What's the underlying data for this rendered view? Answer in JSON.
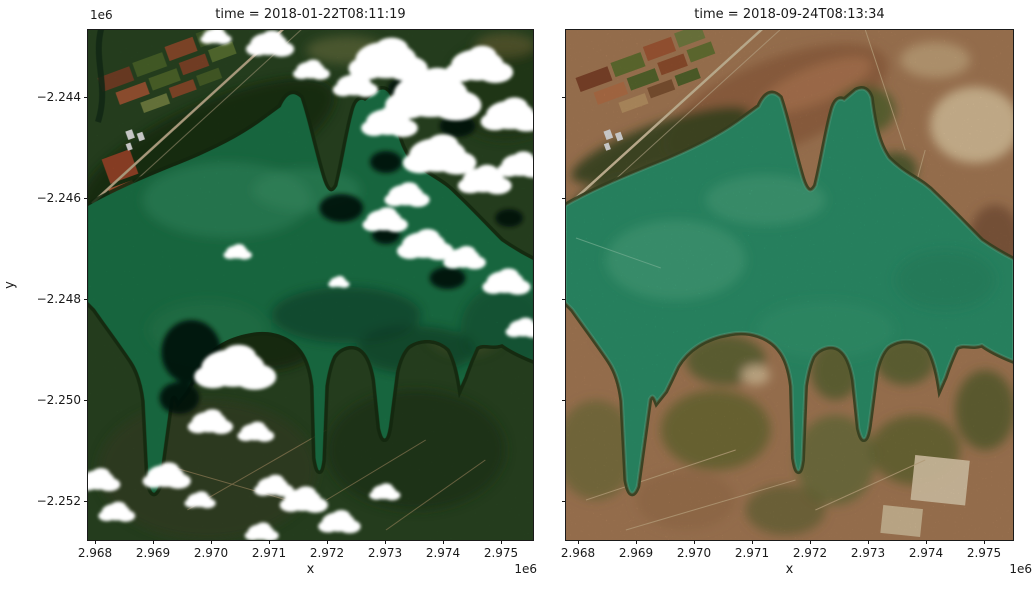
{
  "figure": {
    "background_color": "#ffffff",
    "text_color": "#1a1a1a",
    "panels": [
      {
        "id": "left",
        "title": "time = 2018-01-22T08:11:19",
        "xlabel": "x",
        "ylabel": "y",
        "x_offset_label": "1e6",
        "y_offset_label": "1e6",
        "xtick_labels": [
          "2.968",
          "2.969",
          "2.970",
          "2.971",
          "2.972",
          "2.973",
          "2.974",
          "2.975"
        ],
        "ytick_labels": [
          "−2.244",
          "−2.246",
          "−2.248",
          "−2.250",
          "−2.252"
        ]
      },
      {
        "id": "right",
        "title": "time = 2018-09-24T08:13:34",
        "xlabel": "x",
        "x_offset_label": "1e6",
        "xtick_labels": [
          "2.968",
          "2.969",
          "2.970",
          "2.971",
          "2.972",
          "2.973",
          "2.974",
          "2.975"
        ],
        "ytick_labels": []
      }
    ],
    "colors": {
      "background": "#ffffff",
      "left_land": "#2c4a24",
      "left_forest_dark": "#1a2f14",
      "left_water": "#1d7c4c",
      "left_water_light": "#3b9a6b",
      "left_water_dark": "#0f4a30",
      "left_shore_vegetation": "#173012",
      "cloud_white": "#ffffff",
      "cloud_shadow": "#05120a",
      "right_land": "#b5855d",
      "right_land_dark": "#8f6644",
      "right_scrub_green": "#5c6c33",
      "right_sand": "#e9cda3",
      "right_water": "#2f9c72",
      "right_water_light": "#54b68b",
      "right_water_margin": "#6cc29e",
      "right_shore_vegetation": "#3f4d26",
      "field_red": "#9c4f30",
      "field_green": "#55702f",
      "track_tan": "#c2a274"
    }
  },
  "chart_data": [
    {
      "type": "heatmap",
      "subtype": "rgb_satellite_image",
      "title": "time = 2018-01-22T08:11:19",
      "xlabel": "x",
      "ylabel": "y",
      "x_offset_factor": "1e6",
      "y_offset_factor": "1e6",
      "xticks": [
        2.968,
        2.969,
        2.97,
        2.971,
        2.972,
        2.973,
        2.974,
        2.975
      ],
      "yticks": [
        -2.244,
        -2.246,
        -2.248,
        -2.25,
        -2.252
      ],
      "x_range_approx": [
        2967600,
        2975800
      ],
      "y_range_approx": [
        -2252800,
        -2242700
      ],
      "grid": false,
      "legend": false,
      "description": "True-colour satellite image of a reservoir in the wet season: deep green water, dark green vegetated shores, red and green farm fields with a road in the north-west corner, bright white cumulus clouds with black shadows over the north-east peninsula, the lake centre and the southern shore."
    },
    {
      "type": "heatmap",
      "subtype": "rgb_satellite_image",
      "title": "time = 2018-09-24T08:13:34",
      "xlabel": "x",
      "ylabel": "y",
      "x_offset_factor": "1e6",
      "xticks": [
        2.968,
        2.969,
        2.97,
        2.971,
        2.972,
        2.973,
        2.974,
        2.975
      ],
      "yticks": [
        -2.244,
        -2.246,
        -2.248,
        -2.25,
        -2.252
      ],
      "x_range_approx": [
        2967600,
        2975800
      ],
      "y_range_approx": [
        -2252800,
        -2242700
      ],
      "grid": false,
      "legend": false,
      "description": "Same reservoir in the dry season, cloud-free: emerald-green water, tan and brown scrubland with olive-green bush clumps, pale sand patches, farm fields in the north-west corner, peninsulas reaching into the lake from the south shore."
    }
  ]
}
